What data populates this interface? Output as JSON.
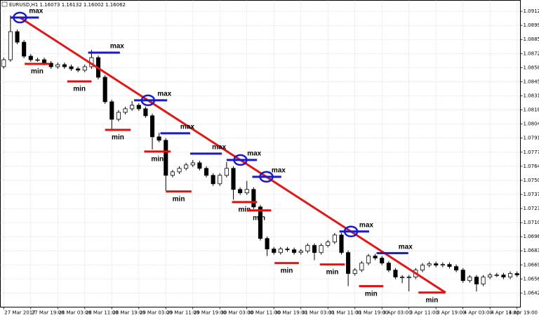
{
  "chart_data": {
    "type": "candlestick",
    "header": "EURUSD,H1  1.16073 1.16132 1.16002 1.16062",
    "categories": [
      "27 Mar 2017",
      null,
      null,
      null,
      "27 Mar 19:00",
      null,
      null,
      null,
      "28 Mar 03:00",
      null,
      null,
      null,
      "28 Mar 11:00",
      null,
      null,
      null,
      "28 Mar 19:00",
      null,
      null,
      null,
      "29 Mar 03:00",
      null,
      null,
      null,
      "29 Mar 11:00",
      null,
      null,
      null,
      "29 Mar 19:00",
      null,
      null,
      null,
      "30 Mar 03:00",
      null,
      null,
      null,
      "30 Mar 11:00",
      null,
      null,
      null,
      "30 Mar 19:00",
      null,
      null,
      null,
      "31 Mar 03:00",
      null,
      null,
      null,
      "31 Mar 11:00",
      null,
      null,
      null,
      "31 Mar 19:00",
      null,
      null,
      null,
      "3 Apr 03:00",
      null,
      null,
      null,
      "3 Apr 11:00",
      null,
      null,
      null,
      "3 Apr 19:00",
      null,
      null,
      null,
      "4 Apr 03:00",
      null,
      null,
      null,
      "4 Apr 11:00",
      null,
      null,
      null,
      "4 Apr 19:00"
    ],
    "open": [
      1.08595,
      1.08661,
      1.0893,
      1.08829,
      1.08695,
      1.08661,
      1.08661,
      1.08628,
      1.08594,
      1.08614,
      1.08594,
      1.08574,
      1.08561,
      1.08594,
      1.08681,
      1.08493,
      1.08258,
      1.0809,
      1.08157,
      1.08191,
      1.08225,
      1.08191,
      1.08124,
      1.07922,
      1.07889,
      1.07553,
      1.07586,
      1.0762,
      1.07653,
      1.07673,
      1.0762,
      1.07553,
      1.07472,
      1.07553,
      1.0762,
      1.07418,
      1.07385,
      1.07418,
      1.0725,
      1.06948,
      1.06847,
      1.06813,
      1.06847,
      1.0684,
      1.06813,
      1.06827,
      1.06881,
      1.06813,
      1.06881,
      1.06914,
      1.06981,
      1.06813,
      1.06612,
      1.06645,
      1.06712,
      1.0678,
      1.0676,
      1.06712,
      1.06645,
      1.06578,
      1.06578,
      1.06578,
      1.06645,
      1.06692,
      1.06706,
      1.06692,
      1.06699,
      1.06679,
      1.06645,
      1.06544,
      1.06578,
      1.06511,
      1.06578,
      1.06598,
      1.06598,
      1.06578,
      1.06612
    ],
    "high": [
      1.08681,
      1.09085,
      1.0895,
      1.08849,
      1.08715,
      1.08681,
      1.08681,
      1.08648,
      1.08634,
      1.08634,
      1.08614,
      1.08594,
      1.08614,
      1.08755,
      1.08701,
      1.08513,
      1.08278,
      1.08177,
      1.08211,
      1.08265,
      1.08245,
      1.08211,
      1.08144,
      1.0796,
      1.07909,
      1.07606,
      1.0764,
      1.07673,
      1.077,
      1.07693,
      1.0764,
      1.07573,
      1.07573,
      1.0768,
      1.0764,
      1.07438,
      1.075,
      1.07438,
      1.0727,
      1.06968,
      1.06867,
      1.06867,
      1.06867,
      1.0686,
      1.06847,
      1.06901,
      1.06901,
      1.06901,
      1.06934,
      1.07001,
      1.07001,
      1.06833,
      1.06665,
      1.06732,
      1.068,
      1.068,
      1.0678,
      1.06732,
      1.06665,
      1.06598,
      1.06598,
      1.06665,
      1.06712,
      1.06726,
      1.06726,
      1.06719,
      1.06719,
      1.06699,
      1.06665,
      1.06598,
      1.06598,
      1.06598,
      1.06618,
      1.06618,
      1.06618,
      1.06632,
      1.06632
    ],
    "low": [
      1.08575,
      1.08641,
      1.08809,
      1.08675,
      1.08641,
      1.08641,
      1.08608,
      1.08574,
      1.08574,
      1.08574,
      1.08554,
      1.08541,
      1.08541,
      1.08574,
      1.08473,
      1.08238,
      1.0799,
      1.0807,
      1.08137,
      1.08171,
      1.08171,
      1.08104,
      1.078,
      1.07869,
      1.07405,
      1.07533,
      1.07566,
      1.076,
      1.07633,
      1.076,
      1.07533,
      1.07452,
      1.07452,
      1.07533,
      1.0732,
      1.07365,
      1.07365,
      1.0723,
      1.06928,
      1.0678,
      1.06793,
      1.06793,
      1.0682,
      1.06793,
      1.06793,
      1.06807,
      1.0674,
      1.06793,
      1.06861,
      1.06894,
      1.06793,
      1.06491,
      1.06592,
      1.06625,
      1.06692,
      1.0674,
      1.06692,
      1.06625,
      1.06558,
      1.0652,
      1.0644,
      1.06558,
      1.06625,
      1.06672,
      1.06672,
      1.06672,
      1.06659,
      1.06625,
      1.06524,
      1.06524,
      1.0644,
      1.06491,
      1.06558,
      1.06578,
      1.06558,
      1.06558,
      1.06578
    ],
    "close": [
      1.08661,
      1.0893,
      1.08829,
      1.08695,
      1.08661,
      1.08661,
      1.08628,
      1.08594,
      1.08614,
      1.08594,
      1.08574,
      1.08561,
      1.08594,
      1.08681,
      1.08493,
      1.08258,
      1.0809,
      1.08157,
      1.08191,
      1.08225,
      1.08191,
      1.08124,
      1.07922,
      1.07889,
      1.07553,
      1.07586,
      1.0762,
      1.07653,
      1.07673,
      1.0762,
      1.07553,
      1.07472,
      1.07553,
      1.0762,
      1.07418,
      1.07385,
      1.07418,
      1.0725,
      1.06948,
      1.06847,
      1.06813,
      1.06847,
      1.0684,
      1.06813,
      1.06827,
      1.06881,
      1.06813,
      1.06881,
      1.06914,
      1.06981,
      1.06813,
      1.06612,
      1.06645,
      1.06712,
      1.0678,
      1.0676,
      1.06712,
      1.06645,
      1.06578,
      1.06578,
      1.06578,
      1.06645,
      1.06692,
      1.06706,
      1.06692,
      1.06699,
      1.06679,
      1.06645,
      1.06544,
      1.06578,
      1.06511,
      1.06578,
      1.06598,
      1.06598,
      1.06578,
      1.06612,
      1.06598
    ],
    "up_color": "#ffffff",
    "down_color": "#000000",
    "ylim": [
      1.0629,
      1.0923
    ],
    "yticks": [
      1.09125,
      {
        "value": 1.0899,
        "label": "1.08990"
      },
      1.08855,
      {
        "value": 1.0872,
        "label": "1.08720"
      },
      1.08585,
      {
        "value": 1.0845,
        "label": "1.08450"
      },
      1.08315,
      {
        "value": 1.0818,
        "label": "1.08180"
      },
      1.08045,
      {
        "value": 1.0791,
        "label": "1.07910"
      },
      1.07775,
      {
        "value": 1.0764,
        "label": "1.07640"
      },
      1.07505,
      {
        "value": 1.0737,
        "label": "1.07370"
      },
      1.07235,
      {
        "value": 1.071,
        "label": "1.07100"
      },
      1.06965,
      {
        "value": 1.0683,
        "label": "1.06830"
      },
      1.06695,
      {
        "value": 1.0656,
        "label": "1.06560"
      },
      1.06425
    ],
    "grid": true,
    "max_color": "#1a1acc",
    "min_color": "#e01010",
    "trend_color": "#e01818",
    "trendline": {
      "start": {
        "x": 2.4,
        "value": 1.09065
      },
      "end": {
        "x": 65.4,
        "value": 1.0643
      }
    },
    "levels": [
      {
        "label": "max",
        "value": 1.09065,
        "from": 1,
        "to": 5.2,
        "circled": true
      },
      {
        "label": "min",
        "value": 1.08621,
        "from": 3.1,
        "to": 6.8
      },
      {
        "label": "min",
        "value": 1.08453,
        "from": 9.4,
        "to": 13
      },
      {
        "label": "max",
        "value": 1.08729,
        "from": 12.5,
        "to": 17.2
      },
      {
        "label": "min",
        "value": 1.07989,
        "from": 15,
        "to": 18.8
      },
      {
        "label": "max",
        "value": 1.08272,
        "from": 19.3,
        "to": 24.2,
        "circled": true
      },
      {
        "label": "min",
        "value": 1.07781,
        "from": 20.8,
        "to": 24.7
      },
      {
        "label": "max",
        "value": 1.07956,
        "from": 23.2,
        "to": 27.6
      },
      {
        "label": "min",
        "value": 1.07398,
        "from": 24,
        "to": 27.8
      },
      {
        "label": "max",
        "value": 1.07761,
        "from": 27.6,
        "to": 32.3
      },
      {
        "label": "max",
        "value": 1.077,
        "from": 33,
        "to": 37.5,
        "circled": true
      },
      {
        "label": "min",
        "value": 1.07297,
        "from": 33.8,
        "to": 37.5
      },
      {
        "label": "max",
        "value": 1.07539,
        "from": 36.8,
        "to": 41.1,
        "circled": true
      },
      {
        "label": "min",
        "value": 1.07217,
        "from": 36,
        "to": 39.6
      },
      {
        "label": "min",
        "value": 1.06712,
        "from": 40.1,
        "to": 43.7
      },
      {
        "label": "min",
        "value": 1.06699,
        "from": 46.8,
        "to": 50.5
      },
      {
        "label": "max",
        "value": 1.07015,
        "from": 49.7,
        "to": 54.1,
        "circled": true
      },
      {
        "label": "min",
        "value": 1.06491,
        "from": 52.6,
        "to": 56.2
      },
      {
        "label": "max",
        "value": 1.06807,
        "from": 55.2,
        "to": 59.9
      },
      {
        "label": "min",
        "value": 1.0643,
        "from": 61.4,
        "to": 65.4
      }
    ]
  }
}
